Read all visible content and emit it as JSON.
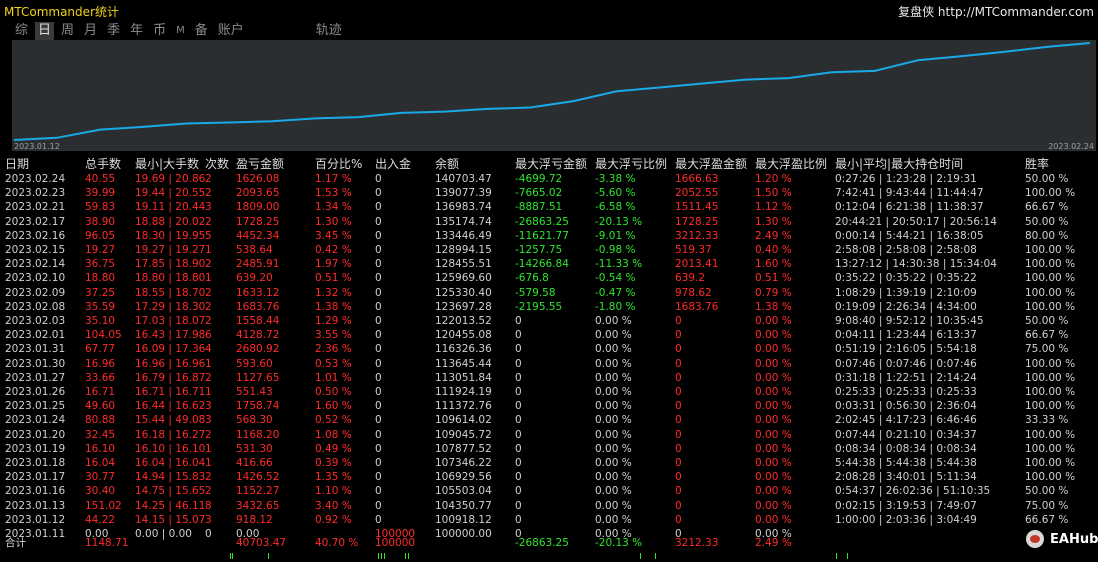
{
  "app": {
    "title": "MTCommander统计",
    "brand_name": "复盘侠",
    "brand_url": "http://MTCommander.com"
  },
  "tabs": [
    {
      "label": "综",
      "active": false
    },
    {
      "label": "日",
      "active": true
    },
    {
      "label": "周",
      "active": false
    },
    {
      "label": "月",
      "active": false
    },
    {
      "label": "季",
      "active": false
    },
    {
      "label": "年",
      "active": false
    },
    {
      "label": "币",
      "active": false
    },
    {
      "label": "M",
      "active": false
    },
    {
      "label": "备",
      "active": false
    },
    {
      "label": "账户",
      "active": false
    },
    {
      "label": "轨迹",
      "active": false
    }
  ],
  "chart": {
    "start_label": "2023.01.12",
    "end_label": "2023.02.24",
    "line_color": "#19a9e8",
    "background": "#2b2e31"
  },
  "colors": {
    "negative": "#ff2a2a",
    "positive": "#2ee62e",
    "text": "#d0d0d0"
  },
  "columns": [
    "日期",
    "总手数",
    "最小|大手数",
    "次数",
    "盈亏金额",
    "百分比%",
    "出入金",
    "余额",
    "最大浮亏金额",
    "最大浮亏比例",
    "最大浮盈金额",
    "最大浮盈比例",
    "最小|平均|最大持仓时间",
    "胜率"
  ],
  "rows": [
    [
      "2023.02.24",
      "40.55",
      "19.69 | 20.86",
      "2",
      "1626.08",
      "1.17 %",
      "0",
      "140703.47",
      "-4699.72",
      "-3.38 %",
      "1666.63",
      "1.20 %",
      "0:27:26 | 1:23:28 | 2:19:31",
      "50.00 %"
    ],
    [
      "2023.02.23",
      "39.99",
      "19.44 | 20.55",
      "2",
      "2093.65",
      "1.53 %",
      "0",
      "139077.39",
      "-7665.02",
      "-5.60 %",
      "2052.55",
      "1.50 %",
      "7:42:41 | 9:43:44 | 11:44:47",
      "100.00 %"
    ],
    [
      "2023.02.21",
      "59.83",
      "19.11 | 20.44",
      "3",
      "1809.00",
      "1.34 %",
      "0",
      "136983.74",
      "-8887.51",
      "-6.58 %",
      "1511.45",
      "1.12 %",
      "0:12:04 | 6:21:38 | 11:38:37",
      "66.67 %"
    ],
    [
      "2023.02.17",
      "38.90",
      "18.88 | 20.02",
      "2",
      "1728.25",
      "1.30 %",
      "0",
      "135174.74",
      "-26863.25",
      "-20.13 %",
      "1728.25",
      "1.30 %",
      "20:44:21 | 20:50:17 | 20:56:14",
      "50.00 %"
    ],
    [
      "2023.02.16",
      "96.05",
      "18.30 | 19.95",
      "5",
      "4452.34",
      "3.45 %",
      "0",
      "133446.49",
      "-11621.77",
      "-9.01 %",
      "3212.33",
      "2.49 %",
      "0:00:14 | 5:44:21 | 16:38:05",
      "80.00 %"
    ],
    [
      "2023.02.15",
      "19.27",
      "19.27 | 19.27",
      "1",
      "538.64",
      "0.42 %",
      "0",
      "128994.15",
      "-1257.75",
      "-0.98 %",
      "519.37",
      "0.40 %",
      "2:58:08 | 2:58:08 | 2:58:08",
      "100.00 %"
    ],
    [
      "2023.02.14",
      "36.75",
      "17.85 | 18.90",
      "2",
      "2485.91",
      "1.97 %",
      "0",
      "128455.51",
      "-14266.84",
      "-11.33 %",
      "2013.41",
      "1.60 %",
      "13:27:12 | 14:30:38 | 15:34:04",
      "100.00 %"
    ],
    [
      "2023.02.10",
      "18.80",
      "18.80 | 18.80",
      "1",
      "639.20",
      "0.51 %",
      "0",
      "125969.60",
      "-676.8",
      "-0.54 %",
      "639.2",
      "0.51 %",
      "0:35:22 | 0:35:22 | 0:35:22",
      "100.00 %"
    ],
    [
      "2023.02.09",
      "37.25",
      "18.55 | 18.70",
      "2",
      "1633.12",
      "1.32 %",
      "0",
      "125330.40",
      "-579.58",
      "-0.47 %",
      "978.62",
      "0.79 %",
      "1:08:29 | 1:39:19 | 2:10:09",
      "100.00 %"
    ],
    [
      "2023.02.08",
      "35.59",
      "17.29 | 18.30",
      "2",
      "1683.76",
      "1.38 %",
      "0",
      "123697.28",
      "-2195.55",
      "-1.80 %",
      "1683.76",
      "1.38 %",
      "0:19:09 | 2:26:34 | 4:34:00",
      "100.00 %"
    ],
    [
      "2023.02.03",
      "35.10",
      "17.03 | 18.07",
      "2",
      "1558.44",
      "1.29 %",
      "0",
      "122013.52",
      "0",
      "0.00 %",
      "0",
      "0.00 %",
      "9:08:40 | 9:52:12 | 10:35:45",
      "50.00 %"
    ],
    [
      "2023.02.01",
      "104.05",
      "16.43 | 17.98",
      "6",
      "4128.72",
      "3.55 %",
      "0",
      "120455.08",
      "0",
      "0.00 %",
      "0",
      "0.00 %",
      "0:04:11 | 1:23:44 | 6:13:37",
      "66.67 %"
    ],
    [
      "2023.01.31",
      "67.77",
      "16.09 | 17.36",
      "4",
      "2680.92",
      "2.36 %",
      "0",
      "116326.36",
      "0",
      "0.00 %",
      "0",
      "0.00 %",
      "0:51:19 | 2:16:05 | 5:54:18",
      "75.00 %"
    ],
    [
      "2023.01.30",
      "16.96",
      "16.96 | 16.96",
      "1",
      "593.60",
      "0.53 %",
      "0",
      "113645.44",
      "0",
      "0.00 %",
      "0",
      "0.00 %",
      "0:07:46 | 0:07:46 | 0:07:46",
      "100.00 %"
    ],
    [
      "2023.01.27",
      "33.66",
      "16.79 | 16.87",
      "2",
      "1127.65",
      "1.01 %",
      "0",
      "113051.84",
      "0",
      "0.00 %",
      "0",
      "0.00 %",
      "0:31:18 | 1:22:51 | 2:14:24",
      "100.00 %"
    ],
    [
      "2023.01.26",
      "16.71",
      "16.71 | 16.71",
      "1",
      "551.43",
      "0.50 %",
      "0",
      "111924.19",
      "0",
      "0.00 %",
      "0",
      "0.00 %",
      "0:25:33 | 0:25:33 | 0:25:33",
      "100.00 %"
    ],
    [
      "2023.01.25",
      "49.60",
      "16.44 | 16.62",
      "3",
      "1758.74",
      "1.60 %",
      "0",
      "111372.76",
      "0",
      "0.00 %",
      "0",
      "0.00 %",
      "0:03:31 | 0:56:30 | 2:36:04",
      "100.00 %"
    ],
    [
      "2023.01.24",
      "80.88",
      "15.44 | 49.08",
      "3",
      "568.30",
      "0.52 %",
      "0",
      "109614.02",
      "0",
      "0.00 %",
      "0",
      "0.00 %",
      "2:02:45 | 4:17:23 | 6:46:46",
      "33.33 %"
    ],
    [
      "2023.01.20",
      "32.45",
      "16.18 | 16.27",
      "2",
      "1168.20",
      "1.08 %",
      "0",
      "109045.72",
      "0",
      "0.00 %",
      "0",
      "0.00 %",
      "0:07:44 | 0:21:10 | 0:34:37",
      "100.00 %"
    ],
    [
      "2023.01.19",
      "16.10",
      "16.10 | 16.10",
      "1",
      "531.30",
      "0.49 %",
      "0",
      "107877.52",
      "0",
      "0.00 %",
      "0",
      "0.00 %",
      "0:08:34 | 0:08:34 | 0:08:34",
      "100.00 %"
    ],
    [
      "2023.01.18",
      "16.04",
      "16.04 | 16.04",
      "1",
      "416.66",
      "0.39 %",
      "0",
      "107346.22",
      "0",
      "0.00 %",
      "0",
      "0.00 %",
      "5:44:38 | 5:44:38 | 5:44:38",
      "100.00 %"
    ],
    [
      "2023.01.17",
      "30.77",
      "14.94 | 15.83",
      "2",
      "1426.52",
      "1.35 %",
      "0",
      "106929.56",
      "0",
      "0.00 %",
      "0",
      "0.00 %",
      "2:08:28 | 3:40:01 | 5:11:34",
      "100.00 %"
    ],
    [
      "2023.01.16",
      "30.40",
      "14.75 | 15.65",
      "2",
      "1152.27",
      "1.10 %",
      "0",
      "105503.04",
      "0",
      "0.00 %",
      "0",
      "0.00 %",
      "0:54:37 | 26:02:36 | 51:10:35",
      "50.00 %"
    ],
    [
      "2023.01.13",
      "151.02",
      "14.25 | 46.11",
      "8",
      "3432.65",
      "3.40 %",
      "0",
      "104350.77",
      "0",
      "0.00 %",
      "0",
      "0.00 %",
      "0:02:15 | 3:19:53 | 7:49:07",
      "75.00 %"
    ],
    [
      "2023.01.12",
      "44.22",
      "14.15 | 15.07",
      "3",
      "918.12",
      "0.92 %",
      "0",
      "100918.12",
      "0",
      "0.00 %",
      "0",
      "0.00 %",
      "1:00:00 | 2:03:36 | 3:04:49",
      "66.67 %"
    ],
    [
      "2023.01.11",
      "0.00",
      "0.00 | 0.00",
      "0",
      "0.00",
      "",
      "100000",
      "100000.00",
      "0",
      "0.00 %",
      "0",
      "0.00 %",
      "",
      ""
    ]
  ],
  "total": {
    "label": "合计",
    "lots": "1148.71",
    "profit": "40703.47",
    "percent": "40.70 %",
    "deposit": "100000",
    "max_float_loss": "-26863.25",
    "max_float_loss_pct": "-20.13 %",
    "max_float_profit": "3212.33",
    "max_float_profit_pct": "2.49 %"
  },
  "watermark": {
    "text": "EAHub"
  }
}
